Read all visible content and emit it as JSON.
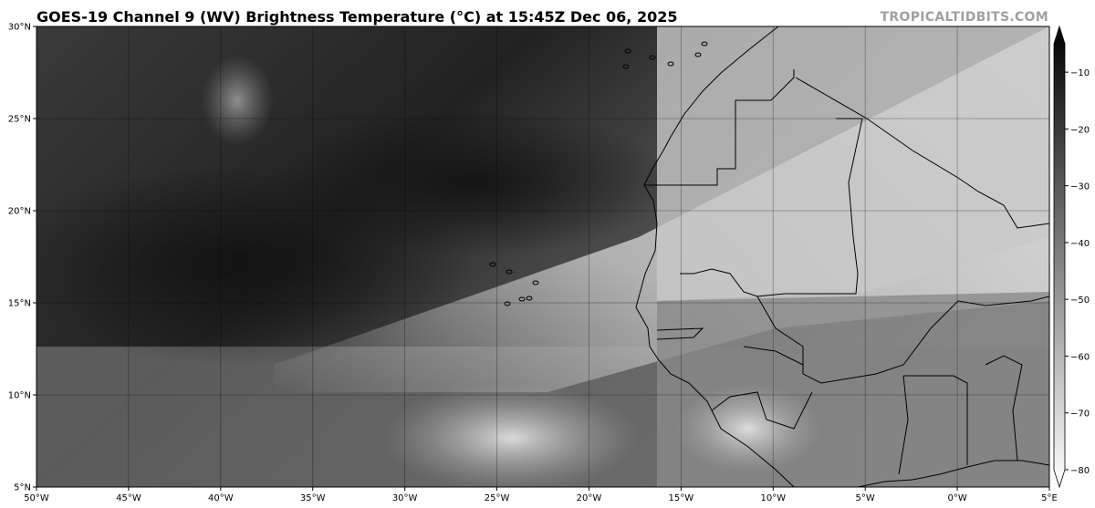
{
  "header": {
    "title": "GOES-19 Channel 9 (WV) Brightness Temperature (°C) at 15:45Z Dec 06, 2025",
    "credit": "TROPICALTIDBITS.COM"
  },
  "map": {
    "lon_range": [
      -50,
      5
    ],
    "lat_range": [
      5,
      30
    ],
    "gridlines": true,
    "lon_ticks": [
      "50°W",
      "45°W",
      "40°W",
      "35°W",
      "30°W",
      "25°W",
      "20°W",
      "15°W",
      "10°W",
      "5°W",
      "0°W",
      "5°E"
    ],
    "lat_ticks": [
      "5°N",
      "10°N",
      "15°N",
      "20°N",
      "25°N",
      "30°N"
    ]
  },
  "colorbar": {
    "colormap": "grayscale (black = warm, white = cold)",
    "range": [
      -80,
      -5
    ],
    "extend": "both",
    "ticks": [
      "−10",
      "−20",
      "−30",
      "−40",
      "−50",
      "−60",
      "−70",
      "−80"
    ]
  }
}
